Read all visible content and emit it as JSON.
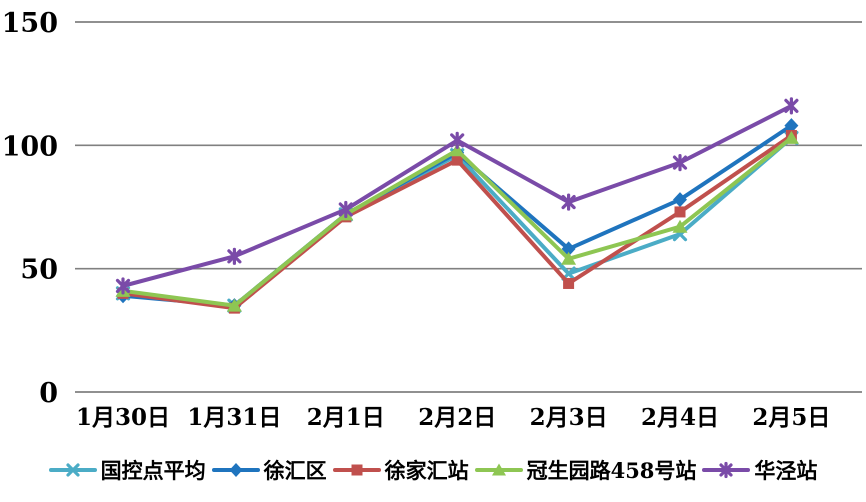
{
  "chart_data": {
    "type": "line",
    "title": "",
    "xlabel": "",
    "ylabel": "",
    "categories": [
      "1月30日",
      "1月31日",
      "2月1日",
      "2月2日",
      "2月3日",
      "2月4日",
      "2月5日"
    ],
    "y_ticks": [
      0,
      50,
      100,
      150
    ],
    "ylim": [
      0,
      150
    ],
    "grid": true,
    "legend_position": "bottom",
    "gridline_color": "#808080",
    "background_color": "#ffffff",
    "series": [
      {
        "name": "国控点平均",
        "color": "#4BACC6",
        "marker": "x",
        "values": [
          40,
          35,
          72,
          96,
          48,
          64,
          103
        ]
      },
      {
        "name": "徐汇区",
        "color": "#1F74BE",
        "marker": "diamond",
        "values": [
          39,
          35,
          72,
          97,
          58,
          78,
          108
        ]
      },
      {
        "name": "徐家汇站",
        "color": "#C0504D",
        "marker": "square",
        "values": [
          40,
          34,
          71,
          94,
          44,
          73,
          104
        ]
      },
      {
        "name": "冠生园路458号站",
        "color": "#8EC653",
        "marker": "triangle",
        "values": [
          41,
          35,
          72,
          98,
          54,
          67,
          103
        ]
      },
      {
        "name": "华泾站",
        "color": "#7A4BA8",
        "marker": "star",
        "values": [
          43,
          55,
          74,
          102,
          77,
          93,
          116
        ]
      }
    ]
  }
}
